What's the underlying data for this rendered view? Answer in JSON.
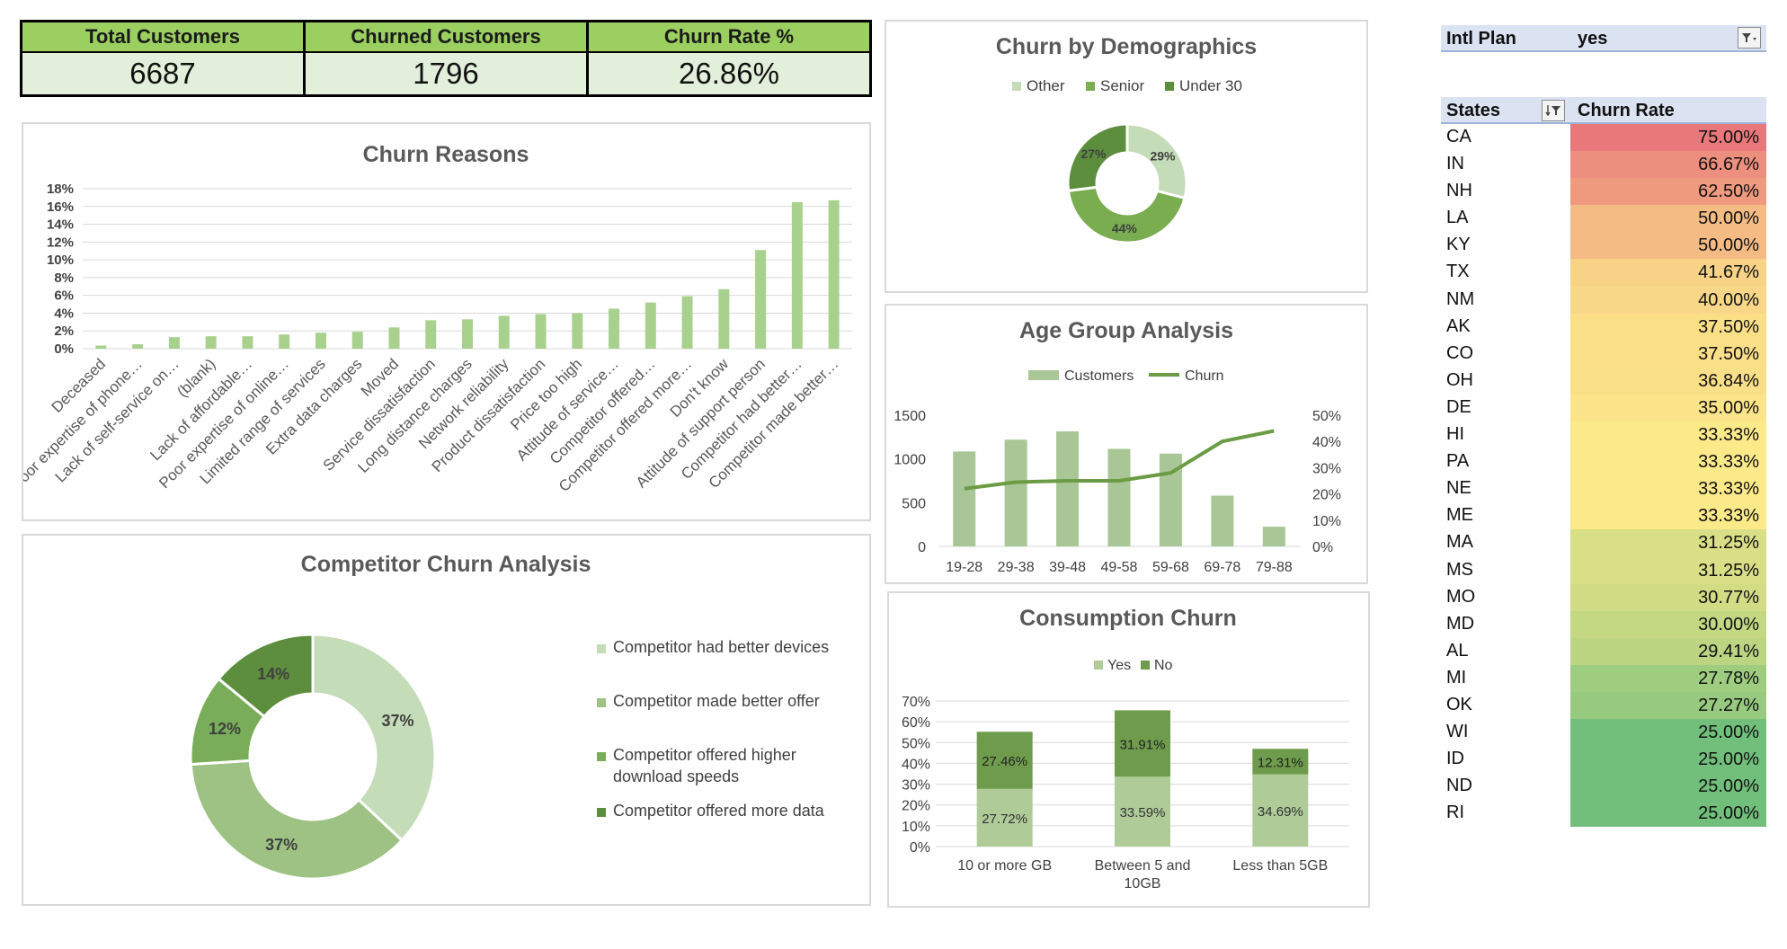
{
  "kpi": {
    "total_label": "Total Customers",
    "total_value": "6687",
    "churned_label": "Churned Customers",
    "churned_value": "1796",
    "rate_label": "Churn Rate %",
    "rate_value": "26.86%"
  },
  "filter": {
    "label": "Intl Plan",
    "value": "yes"
  },
  "states_table": {
    "header_states": "States",
    "header_rate": "Churn Rate",
    "rows": [
      {
        "state": "CA",
        "rate": "75.00%",
        "value": 75.0
      },
      {
        "state": "IN",
        "rate": "66.67%",
        "value": 66.67
      },
      {
        "state": "NH",
        "rate": "62.50%",
        "value": 62.5
      },
      {
        "state": "LA",
        "rate": "50.00%",
        "value": 50.0
      },
      {
        "state": "KY",
        "rate": "50.00%",
        "value": 50.0
      },
      {
        "state": "TX",
        "rate": "41.67%",
        "value": 41.67
      },
      {
        "state": "NM",
        "rate": "40.00%",
        "value": 40.0
      },
      {
        "state": "AK",
        "rate": "37.50%",
        "value": 37.5
      },
      {
        "state": "CO",
        "rate": "37.50%",
        "value": 37.5
      },
      {
        "state": "OH",
        "rate": "36.84%",
        "value": 36.84
      },
      {
        "state": "DE",
        "rate": "35.00%",
        "value": 35.0
      },
      {
        "state": "HI",
        "rate": "33.33%",
        "value": 33.33
      },
      {
        "state": "PA",
        "rate": "33.33%",
        "value": 33.33
      },
      {
        "state": "NE",
        "rate": "33.33%",
        "value": 33.33
      },
      {
        "state": "ME",
        "rate": "33.33%",
        "value": 33.33
      },
      {
        "state": "MA",
        "rate": "31.25%",
        "value": 31.25
      },
      {
        "state": "MS",
        "rate": "31.25%",
        "value": 31.25
      },
      {
        "state": "MO",
        "rate": "30.77%",
        "value": 30.77
      },
      {
        "state": "MD",
        "rate": "30.00%",
        "value": 30.0
      },
      {
        "state": "AL",
        "rate": "29.41%",
        "value": 29.41
      },
      {
        "state": "MI",
        "rate": "27.78%",
        "value": 27.78
      },
      {
        "state": "OK",
        "rate": "27.27%",
        "value": 27.27
      },
      {
        "state": "WI",
        "rate": "25.00%",
        "value": 25.0
      },
      {
        "state": "ID",
        "rate": "25.00%",
        "value": 25.0
      },
      {
        "state": "ND",
        "rate": "25.00%",
        "value": 25.0
      },
      {
        "state": "RI",
        "rate": "25.00%",
        "value": 25.0
      }
    ],
    "color_scale": {
      "high": "#e9787b",
      "mid": "#fce98a",
      "low": "#71bf7b"
    }
  },
  "chart_data": [
    {
      "id": "reasons",
      "type": "bar",
      "title": "Churn Reasons",
      "ylim": [
        0,
        18
      ],
      "yticks": [
        "0%",
        "2%",
        "4%",
        "6%",
        "8%",
        "10%",
        "12%",
        "14%",
        "16%",
        "18%"
      ],
      "categories": [
        "Deceased",
        "Poor expertise of phone…",
        "Lack of self-service on…",
        "(blank)",
        "Lack of affordable…",
        "Poor expertise of online…",
        "Limited range of services",
        "Extra data charges",
        "Moved",
        "Service dissatisfaction",
        "Long distance charges",
        "Network reliability",
        "Product dissatisfaction",
        "Price too high",
        "Attitude of service…",
        "Competitor offered…",
        "Competitor offered more…",
        "Don't know",
        "Attitude of support person",
        "Competitor had better…",
        "Competitor made better…"
      ],
      "values": [
        0.35,
        0.5,
        1.3,
        1.4,
        1.4,
        1.6,
        1.8,
        1.9,
        2.4,
        3.2,
        3.3,
        3.7,
        3.9,
        4.0,
        4.5,
        5.2,
        5.9,
        6.7,
        11.1,
        16.5,
        16.7
      ],
      "color": "#a9d18e"
    },
    {
      "id": "competitor",
      "type": "pie",
      "title": "Competitor Churn Analysis",
      "labels": [
        "Competitor had better devices",
        "Competitor made better offer",
        "Competitor offered higher download speeds",
        "Competitor offered more data"
      ],
      "values": [
        37,
        37,
        12,
        14
      ],
      "data_labels": [
        "37%",
        "37%",
        "12%",
        "14%"
      ],
      "colors": [
        "#c5dcb8",
        "#9dc283",
        "#79ad59",
        "#5d8e3e"
      ],
      "legend": "right"
    },
    {
      "id": "demographics",
      "type": "pie",
      "title": "Churn by Demographics",
      "labels": [
        "Other",
        "Senior",
        "Under 30"
      ],
      "values": [
        29,
        44,
        27
      ],
      "data_labels": [
        "29%",
        "44%",
        "27%"
      ],
      "colors": [
        "#c5dcb8",
        "#79ad4f",
        "#5d8e3e"
      ],
      "legend": "top"
    },
    {
      "id": "age",
      "type": "bar",
      "title": "Age Group Analysis",
      "categories": [
        "19-28",
        "29-38",
        "39-48",
        "49-58",
        "59-68",
        "69-78",
        "79-88"
      ],
      "series": [
        {
          "name": "Customers",
          "values": [
            1085,
            1220,
            1315,
            1115,
            1060,
            580,
            225
          ],
          "axis": "left",
          "color": "#a9c796"
        },
        {
          "name": "Churn",
          "values": [
            22,
            24.5,
            25,
            25,
            28,
            40,
            44
          ],
          "axis": "right",
          "color": "#6b9c45"
        }
      ],
      "yticks_left": [
        "0",
        "500",
        "1000",
        "1500"
      ],
      "yticks_right": [
        "0%",
        "10%",
        "20%",
        "30%",
        "40%",
        "50%"
      ],
      "ylim_left": [
        0,
        1500
      ],
      "ylim_right": [
        0,
        50
      ],
      "legend": "top"
    },
    {
      "id": "consumption",
      "type": "bar",
      "title": "Consumption Churn",
      "categories": [
        "10 or more GB",
        "Between 5 and 10GB",
        "Less than 5GB"
      ],
      "series": [
        {
          "name": "Yes",
          "values": [
            27.72,
            33.59,
            34.69
          ],
          "labels": [
            "27.72%",
            "33.59%",
            "34.69%"
          ],
          "color": "#aecb98"
        },
        {
          "name": "No",
          "values": [
            27.46,
            31.91,
            12.31
          ],
          "labels": [
            "27.46%",
            "31.91%",
            "12.31%"
          ],
          "color": "#6f9c4c"
        }
      ],
      "ylim": [
        0,
        70
      ],
      "yticks": [
        "0%",
        "10%",
        "20%",
        "30%",
        "40%",
        "50%",
        "60%",
        "70%"
      ],
      "legend": "top"
    }
  ]
}
